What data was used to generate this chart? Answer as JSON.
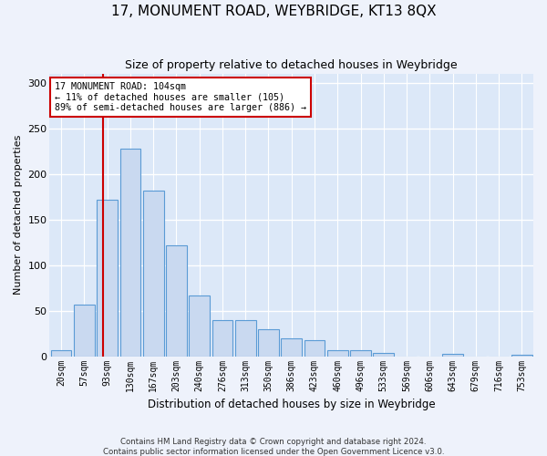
{
  "title": "17, MONUMENT ROAD, WEYBRIDGE, KT13 8QX",
  "subtitle": "Size of property relative to detached houses in Weybridge",
  "xlabel": "Distribution of detached houses by size in Weybridge",
  "ylabel": "Number of detached properties",
  "bar_color": "#c9d9f0",
  "bar_edge_color": "#5b9bd5",
  "background_color": "#dce8f8",
  "grid_color": "#ffffff",
  "bin_labels": [
    "20sqm",
    "57sqm",
    "93sqm",
    "130sqm",
    "167sqm",
    "203sqm",
    "240sqm",
    "276sqm",
    "313sqm",
    "350sqm",
    "386sqm",
    "423sqm",
    "460sqm",
    "496sqm",
    "533sqm",
    "569sqm",
    "606sqm",
    "643sqm",
    "679sqm",
    "716sqm",
    "753sqm"
  ],
  "bar_heights": [
    7,
    57,
    172,
    228,
    182,
    122,
    67,
    40,
    40,
    30,
    20,
    18,
    7,
    7,
    4,
    0,
    0,
    3,
    0,
    0,
    2
  ],
  "annotation_title": "17 MONUMENT ROAD: 104sqm",
  "annotation_line1": "← 11% of detached houses are smaller (105)",
  "annotation_line2": "89% of semi-detached houses are larger (886) →",
  "footer1": "Contains HM Land Registry data © Crown copyright and database right 2024.",
  "footer2": "Contains public sector information licensed under the Open Government Licence v3.0.",
  "ylim": [
    0,
    310
  ],
  "yticks": [
    0,
    50,
    100,
    150,
    200,
    250,
    300
  ],
  "red_line_x": 1.8,
  "red_line_color": "#cc0000",
  "annotation_box_color": "#ffffff",
  "annotation_box_edge": "#cc0000",
  "fig_width": 6.0,
  "fig_height": 5.0
}
